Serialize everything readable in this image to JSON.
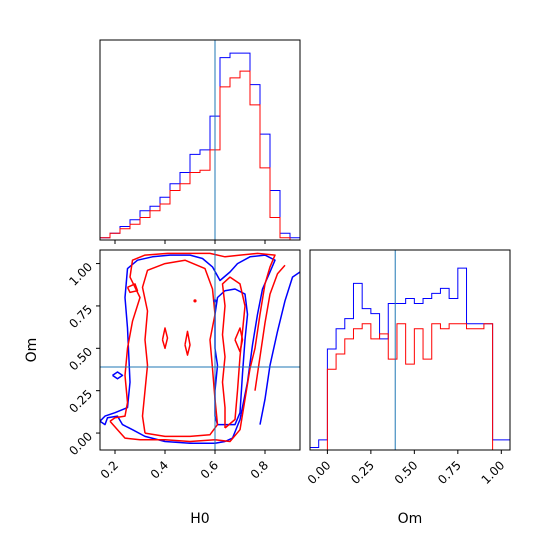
{
  "chart_data": {
    "type": "corner",
    "parameters": [
      "H0",
      "Om"
    ],
    "colors": {
      "blue": "#0000ff",
      "red": "#ff0000",
      "truth": "#1f77b4"
    },
    "truth": {
      "H0": 0.6,
      "Om": 0.39
    },
    "panels": {
      "h0_hist": {
        "type": "histogram",
        "xlim": [
          0.14,
          0.94
        ],
        "bin_edges": [
          0.14,
          0.18,
          0.22,
          0.26,
          0.3,
          0.34,
          0.38,
          0.42,
          0.46,
          0.5,
          0.54,
          0.58,
          0.62,
          0.66,
          0.7,
          0.74,
          0.78,
          0.82,
          0.86,
          0.9,
          0.94
        ],
        "series": [
          {
            "color": "blue",
            "counts": [
              1,
              3,
              6,
              9,
              13,
              15,
              19,
              25,
              30,
              38,
              40,
              55,
              81,
              83,
              83,
              69,
              47,
              22,
              3,
              1
            ]
          },
          {
            "color": "red",
            "counts": [
              1,
              3,
              5,
              7,
              10,
              13,
              16,
              22,
              25,
              30,
              31,
              40,
              68,
              72,
              75,
              60,
              32,
              10,
              1,
              0
            ]
          }
        ]
      },
      "om_hist": {
        "type": "histogram",
        "xlim": [
          -0.1,
          1.05
        ],
        "xticks": [
          "0.00",
          "0.25",
          "0.50",
          "0.75",
          "1.00"
        ],
        "xtick_values": [
          0.0,
          0.25,
          0.5,
          0.75,
          1.0
        ],
        "xlabel": "Om",
        "bin_edges": [
          -0.1,
          -0.05,
          0.0,
          0.05,
          0.1,
          0.15,
          0.2,
          0.25,
          0.3,
          0.35,
          0.4,
          0.45,
          0.5,
          0.55,
          0.6,
          0.65,
          0.7,
          0.75,
          0.8,
          0.85,
          0.9,
          0.95,
          1.0,
          1.05
        ],
        "series": [
          {
            "color": "blue",
            "counts": [
              0.5,
              2,
              20,
              24,
              26,
              33,
              28,
              27,
              22,
              29,
              29,
              30,
              29,
              30,
              31,
              32,
              30,
              36,
              25,
              25,
              25,
              2,
              2
            ]
          },
          {
            "color": "red",
            "counts": [
              0,
              0,
              16,
              19,
              22,
              24,
              25,
              22,
              23,
              18,
              25,
              17,
              24,
              18,
              25,
              24,
              25,
              25,
              24,
              24,
              25,
              0,
              0
            ]
          }
        ]
      },
      "joint": {
        "type": "contour",
        "xlim": [
          0.14,
          0.94
        ],
        "ylim": [
          -0.1,
          1.08
        ],
        "xticks": [
          "0.2",
          "0.4",
          "0.6",
          "0.8"
        ],
        "xtick_values": [
          0.2,
          0.4,
          0.6,
          0.8
        ],
        "yticks": [
          "0.00",
          "0.25",
          "0.50",
          "0.75",
          "1.00"
        ],
        "ytick_values": [
          0.0,
          0.25,
          0.5,
          0.75,
          1.0
        ],
        "xlabel": "H0",
        "ylabel": "Om",
        "contours": [
          {
            "color": "blue",
            "points": [
              [
                0.14,
                0.07
              ],
              [
                0.16,
                0.05
              ],
              [
                0.17,
                0.09
              ],
              [
                0.21,
                0.1
              ],
              [
                0.23,
                0.05
              ],
              [
                0.27,
                0.02
              ],
              [
                0.32,
                -0.02
              ],
              [
                0.4,
                -0.05
              ],
              [
                0.5,
                -0.06
              ],
              [
                0.6,
                -0.06
              ],
              [
                0.64,
                -0.05
              ],
              [
                0.67,
                -0.03
              ],
              [
                0.7,
                0.08
              ],
              [
                0.73,
                0.3
              ],
              [
                0.75,
                0.52
              ],
              [
                0.77,
                0.7
              ],
              [
                0.79,
                0.85
              ],
              [
                0.82,
                0.95
              ],
              [
                0.84,
                1.02
              ],
              [
                0.8,
                1.05
              ],
              [
                0.74,
                1.04
              ],
              [
                0.69,
                1.0
              ],
              [
                0.66,
                0.95
              ],
              [
                0.62,
                0.9
              ],
              [
                0.59,
                0.98
              ],
              [
                0.55,
                1.03
              ],
              [
                0.5,
                1.05
              ],
              [
                0.42,
                1.05
              ],
              [
                0.35,
                1.04
              ],
              [
                0.29,
                1.02
              ],
              [
                0.25,
                0.97
              ],
              [
                0.24,
                0.8
              ],
              [
                0.25,
                0.62
              ],
              [
                0.26,
                0.3
              ],
              [
                0.25,
                0.15
              ],
              [
                0.2,
                0.12
              ],
              [
                0.16,
                0.1
              ],
              [
                0.14,
                0.07
              ]
            ]
          },
          {
            "color": "blue",
            "points": [
              [
                0.61,
                0.05
              ],
              [
                0.68,
                0.05
              ],
              [
                0.7,
                0.12
              ],
              [
                0.71,
                0.35
              ],
              [
                0.72,
                0.55
              ],
              [
                0.73,
                0.7
              ],
              [
                0.72,
                0.82
              ],
              [
                0.68,
                0.85
              ],
              [
                0.64,
                0.84
              ],
              [
                0.61,
                0.8
              ],
              [
                0.6,
                0.7
              ],
              [
                0.6,
                0.5
              ],
              [
                0.61,
                0.4
              ],
              [
                0.6,
                0.25
              ],
              [
                0.6,
                0.1
              ],
              [
                0.61,
                0.05
              ]
            ]
          },
          {
            "color": "blue",
            "points": [
              [
                0.78,
                0.05
              ],
              [
                0.8,
                0.2
              ],
              [
                0.82,
                0.4
              ],
              [
                0.85,
                0.6
              ],
              [
                0.88,
                0.78
              ],
              [
                0.91,
                0.92
              ],
              [
                0.94,
                0.95
              ]
            ]
          },
          {
            "color": "blue",
            "points": [
              [
                0.19,
                0.34
              ],
              [
                0.21,
                0.36
              ],
              [
                0.23,
                0.34
              ],
              [
                0.21,
                0.32
              ],
              [
                0.19,
                0.34
              ]
            ]
          },
          {
            "color": "red",
            "points": [
              [
                0.18,
                0.07
              ],
              [
                0.21,
                0.02
              ],
              [
                0.24,
                -0.03
              ],
              [
                0.3,
                -0.04
              ],
              [
                0.4,
                -0.04
              ],
              [
                0.5,
                -0.05
              ],
              [
                0.6,
                -0.04
              ],
              [
                0.66,
                -0.05
              ],
              [
                0.7,
                0.02
              ],
              [
                0.72,
                0.2
              ],
              [
                0.74,
                0.38
              ],
              [
                0.76,
                0.5
              ],
              [
                0.78,
                0.7
              ],
              [
                0.8,
                0.88
              ],
              [
                0.82,
                0.98
              ],
              [
                0.84,
                1.05
              ],
              [
                0.77,
                1.06
              ],
              [
                0.7,
                1.05
              ],
              [
                0.64,
                1.04
              ],
              [
                0.58,
                1.06
              ],
              [
                0.5,
                1.06
              ],
              [
                0.41,
                1.06
              ],
              [
                0.32,
                1.05
              ],
              [
                0.27,
                1.02
              ],
              [
                0.26,
                0.92
              ],
              [
                0.3,
                0.8
              ],
              [
                0.27,
                0.66
              ],
              [
                0.25,
                0.5
              ],
              [
                0.24,
                0.34
              ],
              [
                0.25,
                0.18
              ],
              [
                0.24,
                0.1
              ],
              [
                0.2,
                0.09
              ],
              [
                0.18,
                0.07
              ]
            ]
          },
          {
            "color": "red",
            "points": [
              [
                0.32,
                0.0
              ],
              [
                0.4,
                -0.02
              ],
              [
                0.5,
                -0.02
              ],
              [
                0.58,
                -0.01
              ],
              [
                0.61,
                0.05
              ],
              [
                0.6,
                0.2
              ],
              [
                0.59,
                0.38
              ],
              [
                0.58,
                0.55
              ],
              [
                0.6,
                0.7
              ],
              [
                0.59,
                0.85
              ],
              [
                0.56,
                0.97
              ],
              [
                0.48,
                1.02
              ],
              [
                0.4,
                1.0
              ],
              [
                0.33,
                0.96
              ],
              [
                0.31,
                0.86
              ],
              [
                0.33,
                0.72
              ],
              [
                0.32,
                0.55
              ],
              [
                0.33,
                0.4
              ],
              [
                0.32,
                0.25
              ],
              [
                0.31,
                0.1
              ],
              [
                0.32,
                0.0
              ]
            ]
          },
          {
            "color": "red",
            "points": [
              [
                0.64,
                0.03
              ],
              [
                0.68,
                0.08
              ],
              [
                0.69,
                0.25
              ],
              [
                0.7,
                0.45
              ],
              [
                0.71,
                0.6
              ],
              [
                0.72,
                0.75
              ],
              [
                0.7,
                0.88
              ],
              [
                0.66,
                0.92
              ],
              [
                0.63,
                0.88
              ],
              [
                0.64,
                0.75
              ],
              [
                0.63,
                0.58
              ],
              [
                0.64,
                0.45
              ],
              [
                0.63,
                0.3
              ],
              [
                0.64,
                0.15
              ],
              [
                0.64,
                0.03
              ]
            ]
          },
          {
            "color": "red",
            "points": [
              [
                0.76,
                0.25
              ],
              [
                0.78,
                0.45
              ],
              [
                0.8,
                0.65
              ],
              [
                0.82,
                0.82
              ],
              [
                0.85,
                0.94
              ],
              [
                0.88,
                0.99
              ]
            ]
          },
          {
            "color": "red",
            "points": [
              [
                0.25,
                0.86
              ],
              [
                0.28,
                0.88
              ],
              [
                0.29,
                0.84
              ],
              [
                0.26,
                0.83
              ],
              [
                0.25,
                0.86
              ]
            ]
          },
          {
            "color": "red",
            "points": [
              [
                0.39,
                0.55
              ],
              [
                0.4,
                0.62
              ],
              [
                0.41,
                0.56
              ],
              [
                0.4,
                0.5
              ],
              [
                0.39,
                0.55
              ]
            ]
          },
          {
            "color": "red",
            "points": [
              [
                0.48,
                0.52
              ],
              [
                0.49,
                0.6
              ],
              [
                0.5,
                0.52
              ],
              [
                0.49,
                0.46
              ],
              [
                0.48,
                0.52
              ]
            ]
          },
          {
            "color": "red",
            "points": [
              [
                0.68,
                0.55
              ],
              [
                0.7,
                0.62
              ],
              [
                0.71,
                0.55
              ],
              [
                0.7,
                0.48
              ],
              [
                0.68,
                0.55
              ]
            ]
          }
        ],
        "markers": [
          {
            "color": "red",
            "x": 0.52,
            "y": 0.78
          },
          {
            "color": "blue",
            "x": 0.6,
            "y": 0.78
          }
        ]
      }
    }
  }
}
